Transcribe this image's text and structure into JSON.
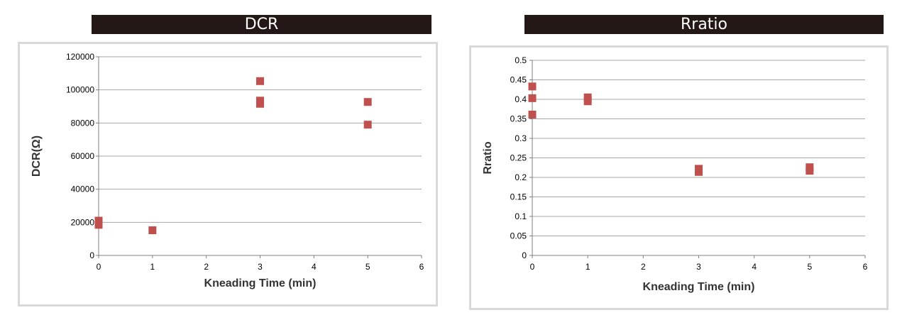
{
  "titles": {
    "left": "DCR",
    "right": "Rratio"
  },
  "colors": {
    "title_bar_bg": "#231815",
    "title_bar_text": "#ffffff",
    "marker": "#c0504d",
    "gridline": "#a6a6a6",
    "panel_border": "#d9d9d9"
  },
  "chart_data": [
    {
      "type": "scatter",
      "title": "DCR",
      "xlabel": "Kneading Time (min)",
      "ylabel": "DCR(Ω)",
      "xlim": [
        0,
        6
      ],
      "ylim": [
        0,
        120000
      ],
      "xticks": [
        0,
        1,
        2,
        3,
        4,
        5,
        6
      ],
      "yticks": [
        0,
        20000,
        40000,
        60000,
        80000,
        100000,
        120000
      ],
      "grid": "horizontal",
      "marker": "square",
      "series": [
        {
          "x": [
            0,
            0,
            1,
            3,
            3,
            3,
            5,
            5
          ],
          "y": [
            21000,
            18500,
            15200,
            105300,
            93500,
            91600,
            92700,
            79000
          ]
        }
      ]
    },
    {
      "type": "scatter",
      "title": "Rratio",
      "xlabel": "Kneading Time (min)",
      "ylabel": "Rratio",
      "xlim": [
        0,
        6
      ],
      "ylim": [
        0,
        0.5
      ],
      "xticks": [
        0,
        1,
        2,
        3,
        4,
        5,
        6
      ],
      "yticks": [
        0,
        0.05,
        0.1,
        0.15,
        0.2,
        0.25,
        0.3,
        0.35,
        0.4,
        0.45,
        0.5
      ],
      "ytick_labels": [
        "0",
        "0.05",
        "0.1",
        "0.15",
        "0.2",
        "0.25",
        "0.3",
        "0.35",
        "0.4",
        "0.45",
        "0.5"
      ],
      "grid": "horizontal",
      "marker": "square",
      "series": [
        {
          "x": [
            0,
            0,
            0,
            1,
            1,
            3,
            3,
            5,
            5
          ],
          "y": [
            0.433,
            0.403,
            0.361,
            0.405,
            0.395,
            0.222,
            0.214,
            0.226,
            0.217
          ]
        }
      ]
    }
  ]
}
